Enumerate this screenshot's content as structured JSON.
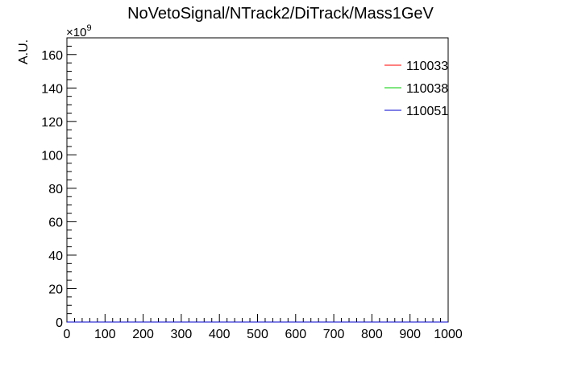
{
  "chart_data": {
    "type": "line",
    "title": "NoVetoSignal/NTrack2/DiTrack/Mass1GeV",
    "xlabel": "",
    "ylabel": "A.U.",
    "y_multiplier": "×10",
    "y_multiplier_exp": "9",
    "xlim": [
      0,
      1000
    ],
    "ylim": [
      0,
      170
    ],
    "x_ticks": [
      "0",
      "100",
      "200",
      "300",
      "400",
      "500",
      "600",
      "700",
      "800",
      "900",
      "1000"
    ],
    "y_ticks": [
      "0",
      "20",
      "40",
      "60",
      "80",
      "100",
      "120",
      "140",
      "160"
    ],
    "grid": false,
    "legend_position": "top-right",
    "series": [
      {
        "name": "110033",
        "color": "#ff0000",
        "values": []
      },
      {
        "name": "110038",
        "color": "#00cc00",
        "values": []
      },
      {
        "name": "110051",
        "color": "#0000cc",
        "values": []
      }
    ]
  }
}
